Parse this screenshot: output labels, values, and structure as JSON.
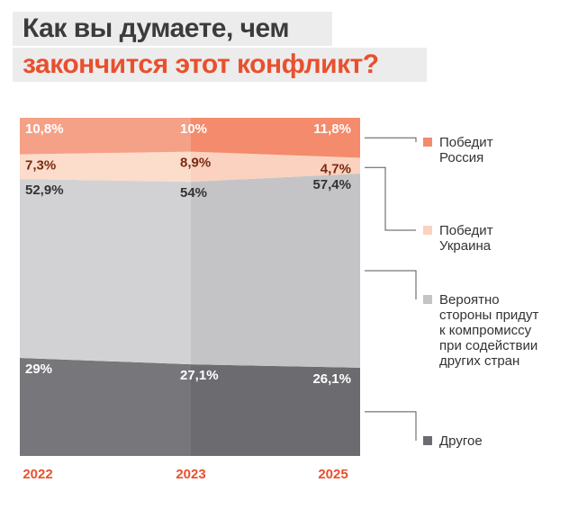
{
  "title": {
    "line1": "Как вы думаете, чем",
    "line2": "закончится этот конфликт?"
  },
  "colors": {
    "title_dark": "#3c3c3c",
    "title_accent": "#e8502e",
    "year_label": "#e8502e"
  },
  "chart_data": {
    "type": "area",
    "stacked": true,
    "normalized_to_percent": true,
    "categories": [
      "2022",
      "2023",
      "2025"
    ],
    "series": [
      {
        "name": "Другое",
        "legend_lines": [
          "Другое"
        ],
        "values": [
          29,
          27.1,
          26.1
        ],
        "labels": [
          "29%",
          "27,1%",
          "26,1%"
        ],
        "color": "#77777b",
        "color_dark": "#6c6c70",
        "label_color": "#ffffff"
      },
      {
        "name": "Вероятно стороны придут к компромиссу при содействии других стран",
        "legend_lines": [
          "Вероятно",
          "стороны придут",
          "к компромиссу",
          "при содействии",
          "других стран"
        ],
        "values": [
          52.9,
          54,
          57.4
        ],
        "labels": [
          "52,9%",
          "54%",
          "57,4%"
        ],
        "color": "#d2d2d4",
        "color_dark": "#c4c4c6",
        "label_color": "#333333"
      },
      {
        "name": "Победит Украина",
        "legend_lines": [
          "Победит",
          "Украина"
        ],
        "values": [
          7.3,
          8.9,
          4.7
        ],
        "labels": [
          "7,3%",
          "8,9%",
          "4,7%"
        ],
        "color": "#fcdccb",
        "color_dark": "#fad2bf",
        "label_color": "#7a2a12"
      },
      {
        "name": "Победит Россия",
        "legend_lines": [
          "Победит",
          "Россия"
        ],
        "values": [
          10.8,
          10,
          11.8
        ],
        "labels": [
          "10,8%",
          "10%",
          "11,8%"
        ],
        "color": "#f5a187",
        "color_dark": "#f38b6c",
        "label_color": "#ffffff"
      }
    ],
    "legend_order": [
      "Победит Россия",
      "Победит Украина",
      "Вероятно стороны придут к компромиссу при содействии других стран",
      "Другое"
    ],
    "legend_position": "right",
    "ylim": [
      0,
      100
    ],
    "grid": false,
    "xlabel": "",
    "ylabel": ""
  }
}
